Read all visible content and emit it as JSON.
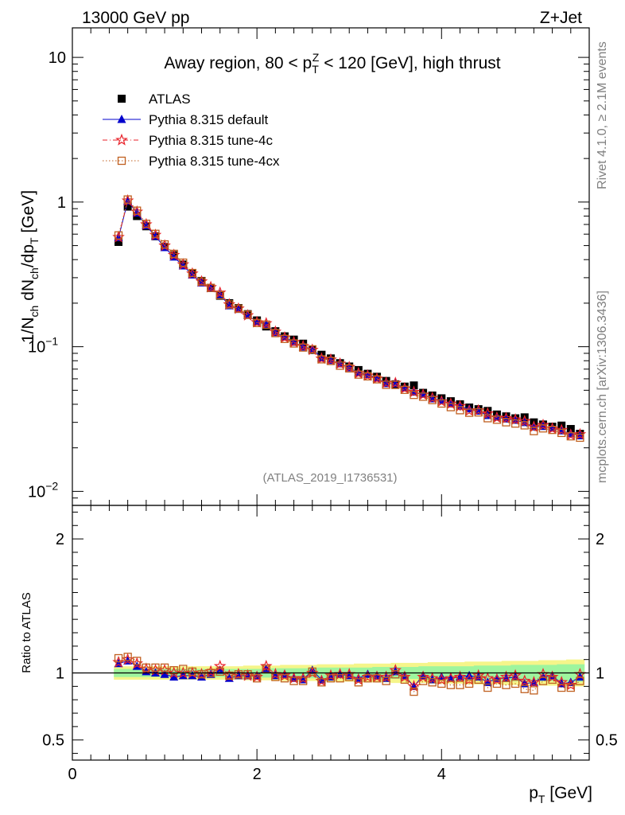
{
  "header": {
    "left": "13000 GeV pp",
    "right": "Z+Jet"
  },
  "side_labels": {
    "rivet": "Rivet 4.1.0, ≥ 2.1M events",
    "mcplots": "mcplots.cern.ch [arXiv:1306.3436]"
  },
  "chart_data": {
    "type": "scatter",
    "title_pre": "Away region, 80 < p",
    "title_sup": "Z",
    "title_sub": "T",
    "title_post": " < 120 [GeV], high thrust",
    "watermark": "(ATLAS_2019_I1736531)",
    "ylabel_main": "1/N_ch dN_ch/dp_T [GeV]",
    "ylabel_ratio": "Ratio to ATLAS",
    "xlabel": "p_T [GeV]",
    "xlim": [
      0,
      5.6
    ],
    "ylim_main": [
      0.008,
      16
    ],
    "ylim_ratio": [
      0.35,
      2.25
    ],
    "x_ticks": [
      {
        "v": 0,
        "label": "0"
      },
      {
        "v": 2,
        "label": "2"
      },
      {
        "v": 4,
        "label": "4"
      }
    ],
    "y_ticks_main": [
      {
        "v": 0.01,
        "base": "10",
        "exp": "−2"
      },
      {
        "v": 0.1,
        "base": "10",
        "exp": "−1"
      },
      {
        "v": 1,
        "base": "1",
        "exp": ""
      },
      {
        "v": 10,
        "base": "10",
        "exp": ""
      }
    ],
    "y_ticks_ratio": [
      {
        "v": 0.5,
        "label": "0.5"
      },
      {
        "v": 1,
        "label": "1"
      },
      {
        "v": 2,
        "label": "2"
      }
    ],
    "x": [
      0.5,
      0.6,
      0.7,
      0.8,
      0.9,
      1.0,
      1.1,
      1.2,
      1.3,
      1.4,
      1.5,
      1.6,
      1.7,
      1.8,
      1.9,
      2.0,
      2.1,
      2.2,
      2.3,
      2.4,
      2.5,
      2.6,
      2.7,
      2.8,
      2.9,
      3.0,
      3.1,
      3.2,
      3.3,
      3.4,
      3.5,
      3.6,
      3.7,
      3.8,
      3.9,
      4.0,
      4.1,
      4.2,
      4.3,
      4.4,
      4.5,
      4.6,
      4.7,
      4.8,
      4.9,
      5.0,
      5.1,
      5.2,
      5.3,
      5.4,
      5.5
    ],
    "atlas": [
      0.53,
      0.93,
      0.8,
      0.68,
      0.58,
      0.49,
      0.43,
      0.37,
      0.32,
      0.285,
      0.255,
      0.225,
      0.2,
      0.185,
      0.168,
      0.152,
      0.138,
      0.128,
      0.118,
      0.112,
      0.105,
      0.095,
      0.088,
      0.083,
      0.077,
      0.073,
      0.069,
      0.065,
      0.062,
      0.058,
      0.055,
      0.053,
      0.054,
      0.048,
      0.046,
      0.044,
      0.042,
      0.04,
      0.038,
      0.037,
      0.036,
      0.034,
      0.033,
      0.032,
      0.0325,
      0.03,
      0.029,
      0.028,
      0.0285,
      0.027,
      0.025
    ],
    "ratio_band_inner": [
      0.03,
      0.03,
      0.03,
      0.03,
      0.03,
      0.03,
      0.03,
      0.03,
      0.03,
      0.03,
      0.03,
      0.03,
      0.03,
      0.03,
      0.03,
      0.03,
      0.035,
      0.035,
      0.035,
      0.035,
      0.035,
      0.04,
      0.04,
      0.04,
      0.04,
      0.04,
      0.04,
      0.04,
      0.045,
      0.045,
      0.045,
      0.045,
      0.045,
      0.05,
      0.05,
      0.05,
      0.05,
      0.05,
      0.05,
      0.055,
      0.055,
      0.055,
      0.055,
      0.06,
      0.06,
      0.06,
      0.06,
      0.06,
      0.065,
      0.065,
      0.065
    ],
    "ratio_band_outer": [
      0.05,
      0.05,
      0.05,
      0.05,
      0.05,
      0.05,
      0.05,
      0.05,
      0.05,
      0.05,
      0.05,
      0.05,
      0.05,
      0.05,
      0.055,
      0.055,
      0.055,
      0.055,
      0.06,
      0.06,
      0.06,
      0.06,
      0.065,
      0.065,
      0.065,
      0.065,
      0.07,
      0.07,
      0.07,
      0.07,
      0.075,
      0.075,
      0.075,
      0.075,
      0.08,
      0.08,
      0.08,
      0.08,
      0.085,
      0.085,
      0.085,
      0.085,
      0.09,
      0.09,
      0.09,
      0.09,
      0.095,
      0.095,
      0.095,
      0.1,
      0.1
    ],
    "series": [
      {
        "name": "ATLAS",
        "color": "#000000",
        "style": "data",
        "ratio": []
      },
      {
        "name": "Pythia 8.315 default",
        "color": "#0000cc",
        "style": "triangle",
        "ratio": [
          1.07,
          1.09,
          1.05,
          1.01,
          1.0,
          0.99,
          0.97,
          0.98,
          0.98,
          0.97,
          0.99,
          1.02,
          0.96,
          0.98,
          0.98,
          0.98,
          1.03,
          0.98,
          0.99,
          0.96,
          0.95,
          1.02,
          0.95,
          0.97,
          0.99,
          0.98,
          0.96,
          0.99,
          0.98,
          0.96,
          1.01,
          0.98,
          0.9,
          0.98,
          0.95,
          0.97,
          0.96,
          0.97,
          0.98,
          0.97,
          0.93,
          0.96,
          0.96,
          0.97,
          0.92,
          0.93,
          0.97,
          0.98,
          0.92,
          0.93,
          0.97
        ]
      },
      {
        "name": "Pythia 8.315 tune-4c",
        "color": "#e8222a",
        "style": "star",
        "ratio": [
          1.08,
          1.1,
          1.07,
          1.03,
          1.02,
          1.02,
          1.0,
          1.0,
          1.0,
          0.99,
          1.01,
          1.05,
          0.98,
          0.99,
          0.98,
          0.97,
          1.05,
          0.99,
          0.98,
          0.96,
          0.96,
          1.0,
          0.94,
          0.98,
          0.99,
          0.99,
          0.95,
          0.97,
          0.97,
          0.97,
          1.02,
          0.97,
          0.9,
          0.97,
          0.96,
          0.95,
          0.96,
          0.97,
          0.95,
          0.98,
          0.96,
          0.95,
          0.97,
          0.98,
          0.94,
          0.93,
          0.99,
          0.97,
          0.93,
          0.91,
          0.99
        ]
      },
      {
        "name": "Pythia 8.315 tune-4cx",
        "color": "#c06020",
        "style": "square",
        "ratio": [
          1.11,
          1.12,
          1.09,
          1.04,
          1.04,
          1.04,
          1.02,
          1.03,
          1.01,
          0.99,
          1.0,
          1.01,
          0.98,
          0.99,
          0.99,
          0.96,
          1.03,
          0.97,
          0.96,
          0.94,
          0.94,
          1.01,
          0.93,
          0.96,
          0.96,
          0.97,
          0.93,
          0.96,
          0.96,
          0.94,
          0.99,
          0.95,
          0.86,
          0.94,
          0.93,
          0.92,
          0.91,
          0.91,
          0.92,
          0.95,
          0.89,
          0.92,
          0.91,
          0.92,
          0.88,
          0.87,
          0.94,
          0.95,
          0.89,
          0.89,
          0.94
        ]
      }
    ]
  }
}
